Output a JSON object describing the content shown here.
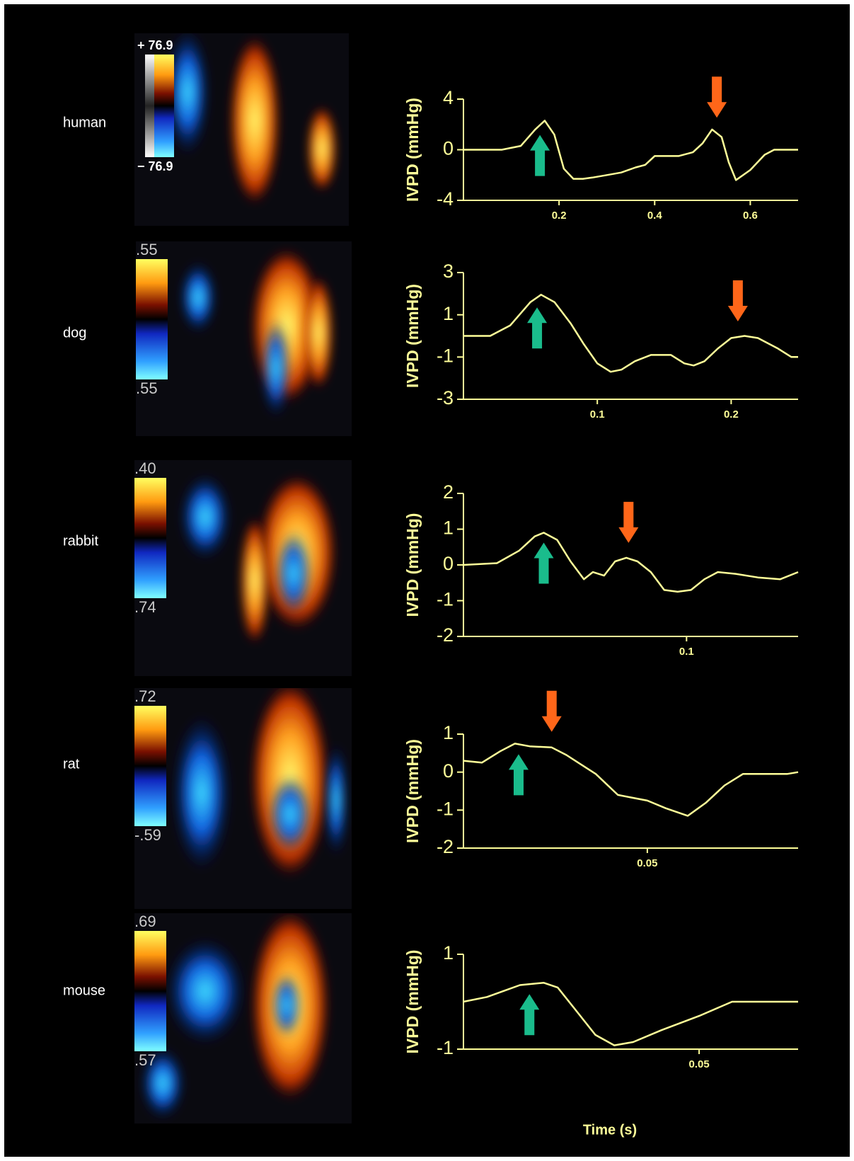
{
  "chart_data": [
    {
      "type": "line",
      "y_label": "IVPD (mmHg)",
      "color": "#ffff99",
      "x": [
        0,
        0.08,
        0.12,
        0.15,
        0.17,
        0.19,
        0.21,
        0.23,
        0.25,
        0.27,
        0.3,
        0.33,
        0.36,
        0.38,
        0.4,
        0.45,
        0.48,
        0.5,
        0.52,
        0.54,
        0.555,
        0.57,
        0.6,
        0.63,
        0.65,
        0.7
      ],
      "values": [
        0,
        0,
        0.3,
        1.6,
        2.3,
        1.2,
        -1.5,
        -2.3,
        -2.3,
        -2.2,
        -2,
        -1.8,
        -1.4,
        -1.2,
        -0.5,
        -0.5,
        -0.2,
        0.5,
        1.6,
        1,
        -1,
        -2.4,
        -1.6,
        -0.4,
        0,
        0
      ],
      "xlim": [
        0,
        0.7
      ],
      "ylim": [
        -4,
        4
      ],
      "xticks": [
        0.2,
        0.4,
        0.6
      ],
      "yticks": [
        -4,
        0,
        4
      ],
      "arrows": [
        {
          "x": 0.16,
          "direction": "up",
          "color": "#1abc8c"
        },
        {
          "x": 0.53,
          "direction": "down",
          "color": "#ff6619"
        }
      ]
    },
    {
      "type": "line",
      "y_label": "IVPD (mmHg)",
      "color": "#ffff99",
      "x": [
        0,
        0.02,
        0.035,
        0.05,
        0.058,
        0.068,
        0.08,
        0.09,
        0.1,
        0.11,
        0.118,
        0.128,
        0.14,
        0.155,
        0.165,
        0.172,
        0.18,
        0.19,
        0.2,
        0.21,
        0.22,
        0.235,
        0.245,
        0.25
      ],
      "values": [
        0,
        0,
        0.5,
        1.6,
        1.95,
        1.6,
        0.6,
        -0.4,
        -1.3,
        -1.7,
        -1.6,
        -1.2,
        -0.9,
        -0.9,
        -1.3,
        -1.4,
        -1.2,
        -0.6,
        -0.1,
        0,
        -0.1,
        -0.6,
        -1,
        -1
      ],
      "xlim": [
        0,
        0.25
      ],
      "ylim": [
        -3,
        3
      ],
      "xticks": [
        0.1,
        0.2
      ],
      "yticks": [
        -3,
        -1,
        1,
        3
      ],
      "arrows": [
        {
          "x": 0.055,
          "direction": "up",
          "color": "#1abc8c"
        },
        {
          "x": 0.205,
          "direction": "down",
          "color": "#ff6619"
        }
      ]
    },
    {
      "type": "line",
      "y_label": "IVPD (mmHg)",
      "color": "#ffff99",
      "x": [
        0,
        0.015,
        0.025,
        0.032,
        0.036,
        0.042,
        0.048,
        0.054,
        0.058,
        0.063,
        0.068,
        0.073,
        0.078,
        0.084,
        0.09,
        0.096,
        0.102,
        0.108,
        0.114,
        0.122,
        0.132,
        0.142,
        0.15
      ],
      "values": [
        0,
        0.05,
        0.4,
        0.8,
        0.9,
        0.7,
        0.1,
        -0.4,
        -0.2,
        -0.3,
        0.1,
        0.2,
        0.1,
        -0.2,
        -0.7,
        -0.75,
        -0.7,
        -0.4,
        -0.2,
        -0.25,
        -0.35,
        -0.4,
        -0.2
      ],
      "xlim": [
        0,
        0.15
      ],
      "ylim": [
        -2,
        2
      ],
      "xticks": [
        0.1
      ],
      "yticks": [
        -2,
        -1,
        0,
        1,
        2
      ],
      "arrows": [
        {
          "x": 0.036,
          "direction": "up",
          "color": "#1abc8c"
        },
        {
          "x": 0.074,
          "direction": "down",
          "color": "#ff6619"
        }
      ]
    },
    {
      "type": "line",
      "y_label": "IVPD (mmHg)",
      "color": "#ffff99",
      "x": [
        0,
        0.005,
        0.01,
        0.014,
        0.018,
        0.024,
        0.028,
        0.032,
        0.036,
        0.042,
        0.05,
        0.055,
        0.061,
        0.066,
        0.071,
        0.076,
        0.082,
        0.088,
        0.091
      ],
      "values": [
        0.3,
        0.25,
        0.55,
        0.75,
        0.68,
        0.65,
        0.45,
        0.2,
        -0.05,
        -0.6,
        -0.75,
        -0.95,
        -1.15,
        -0.8,
        -0.35,
        -0.05,
        -0.05,
        -0.05,
        0
      ],
      "xlim": [
        0,
        0.091
      ],
      "ylim": [
        -2,
        1
      ],
      "xticks": [
        0.05
      ],
      "yticks": [
        -2,
        -1,
        0,
        1
      ],
      "arrows": [
        {
          "x": 0.015,
          "direction": "up",
          "color": "#1abc8c"
        },
        {
          "x": 0.024,
          "direction": "down",
          "color": "#ff6619"
        }
      ]
    },
    {
      "type": "line",
      "y_label": "IVPD (mmHg)",
      "color": "#ffff99",
      "x": [
        0,
        0.005,
        0.012,
        0.017,
        0.02,
        0.024,
        0.028,
        0.032,
        0.036,
        0.042,
        0.05,
        0.057,
        0.062,
        0.071
      ],
      "values": [
        0,
        0.1,
        0.35,
        0.4,
        0.3,
        -0.2,
        -0.7,
        -0.92,
        -0.85,
        -0.6,
        -0.3,
        0,
        0,
        0
      ],
      "xlim": [
        0,
        0.071
      ],
      "ylim": [
        -1,
        1
      ],
      "xticks": [
        0.05
      ],
      "yticks": [
        -1,
        1
      ],
      "arrows": [
        {
          "x": 0.014,
          "direction": "up",
          "color": "#1abc8c"
        }
      ]
    }
  ],
  "x_label": "Time (s)",
  "rows": [
    {
      "species": "human",
      "scale_top": "+ 76.9",
      "scale_bottom": "− 76.9"
    },
    {
      "species": "dog",
      "scale_top": ".55",
      "scale_bottom": ".55"
    },
    {
      "species": "rabbit",
      "scale_top": ".40",
      "scale_bottom": ".74"
    },
    {
      "species": "rat",
      "scale_top": ".72",
      "scale_bottom": "-.59"
    },
    {
      "species": "mouse",
      "scale_top": ".69",
      "scale_bottom": ".57"
    }
  ]
}
